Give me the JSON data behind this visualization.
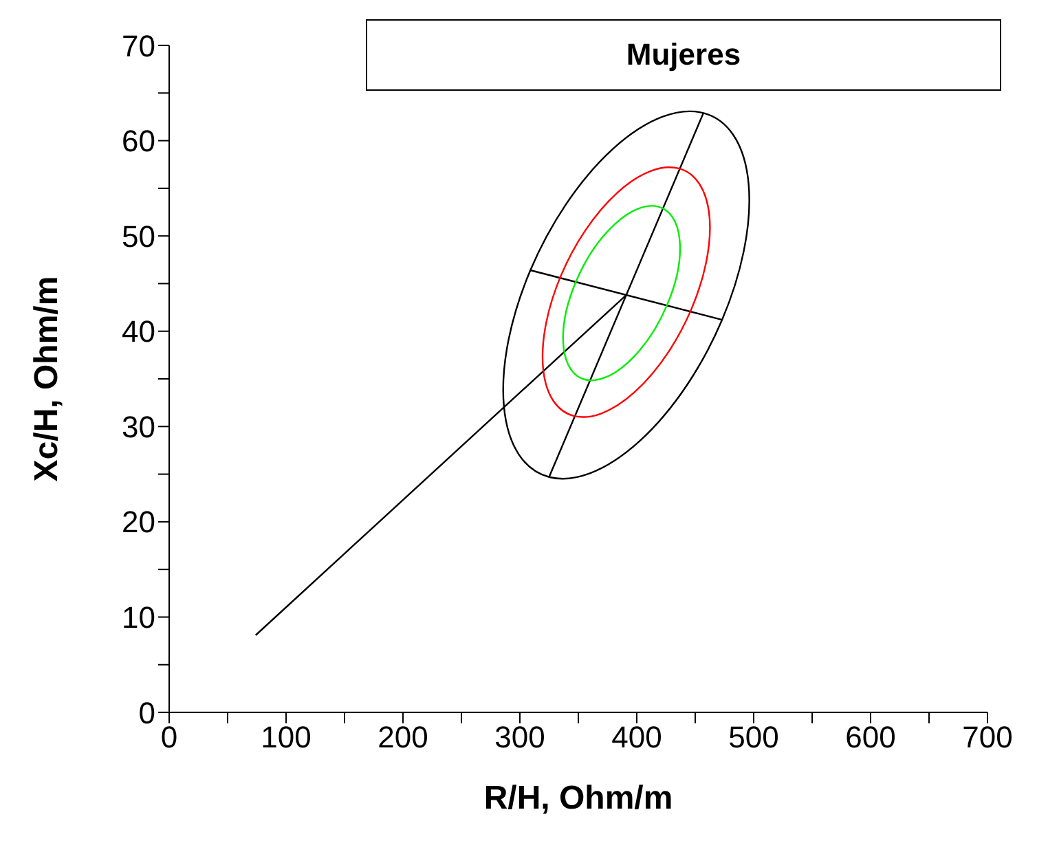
{
  "chart_data": {
    "type": "line",
    "title": "Mujeres",
    "xlabel": "R/H, Ohm/m",
    "ylabel": "Xc/H, Ohm/m",
    "xlim": [
      0,
      700
    ],
    "ylim": [
      0,
      70
    ],
    "xticks": [
      0,
      {
        "value": 50,
        "label": null
      },
      100,
      {
        "value": 150,
        "label": null
      },
      200,
      {
        "value": 250,
        "label": null
      },
      300,
      {
        "value": 350,
        "label": null
      },
      400,
      {
        "value": 450,
        "label": null
      },
      500,
      {
        "value": 550,
        "label": null
      },
      600,
      {
        "value": 650,
        "label": null
      },
      700
    ],
    "yticks": [
      0,
      {
        "value": 5,
        "label": null
      },
      10,
      {
        "value": 15,
        "label": null
      },
      20,
      {
        "value": 25,
        "label": null
      },
      30,
      {
        "value": 35,
        "label": null
      },
      40,
      {
        "value": 45,
        "label": null
      },
      50,
      {
        "value": 55,
        "label": null
      },
      60,
      {
        "value": 65,
        "label": null
      },
      70
    ],
    "grid": false,
    "legend": false,
    "marker": "none",
    "line_style": "solid",
    "series": [
      {
        "color": "#000000",
        "x": [
          325,
          457
        ],
        "values": [
          24.7,
          62.9
        ]
      },
      {
        "color": "#000000",
        "x": [
          309,
          473
        ],
        "values": [
          46.4,
          41.2
        ]
      },
      {
        "color": "#000000",
        "x": [
          74,
          391
        ],
        "values": [
          8.1,
          43.8
        ]
      }
    ]
  }
}
